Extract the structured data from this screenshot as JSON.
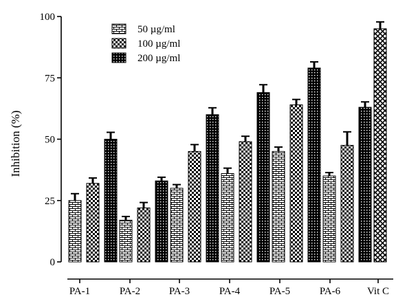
{
  "chart_data": {
    "type": "bar",
    "title": "",
    "xlabel": "",
    "ylabel": "Inhibition (%)",
    "ylim": [
      0,
      100
    ],
    "yticks": [
      0,
      25,
      50,
      75,
      100
    ],
    "grid": false,
    "legend_position": "top-left",
    "groups": [
      {
        "label": "PA-1",
        "bars": [
          {
            "series": "50 µg/ml",
            "value": 25,
            "error": 2.8
          },
          {
            "series": "100 µg/ml",
            "value": 32,
            "error": 2.2
          },
          {
            "series": "200 µg/ml",
            "value": 50,
            "error": 2.8
          }
        ]
      },
      {
        "label": "PA-2",
        "bars": [
          {
            "series": "50 µg/ml",
            "value": 17,
            "error": 1.5
          },
          {
            "series": "100 µg/ml",
            "value": 22,
            "error": 2.2
          },
          {
            "series": "200 µg/ml",
            "value": 33,
            "error": 1.5
          }
        ]
      },
      {
        "label": "PA-3",
        "bars": [
          {
            "series": "50 µg/ml",
            "value": 30,
            "error": 1.5
          },
          {
            "series": "100 µg/ml",
            "value": 45,
            "error": 2.8
          },
          {
            "series": "200 µg/ml",
            "value": 60,
            "error": 2.8
          }
        ]
      },
      {
        "label": "PA-4",
        "bars": [
          {
            "series": "50 µg/ml",
            "value": 36,
            "error": 2.2
          },
          {
            "series": "100 µg/ml",
            "value": 49,
            "error": 2.2
          },
          {
            "series": "200 µg/ml",
            "value": 69,
            "error": 3.2
          }
        ]
      },
      {
        "label": "PA-5",
        "bars": [
          {
            "series": "50 µg/ml",
            "value": 45,
            "error": 1.8
          },
          {
            "series": "100 µg/ml",
            "value": 64,
            "error": 2.2
          },
          {
            "series": "200 µg/ml",
            "value": 79,
            "error": 2.5
          }
        ]
      },
      {
        "label": "PA-6",
        "bars": [
          {
            "series": "50 µg/ml",
            "value": 35,
            "error": 1.4
          },
          {
            "series": "100 µg/ml",
            "value": 47.5,
            "error": 5.5
          },
          {
            "series": "200 µg/ml",
            "value": 63,
            "error": 2.2
          }
        ]
      },
      {
        "label": "Vit C",
        "bars": [
          {
            "series": "Vit C",
            "value": 95,
            "error": 2.8
          }
        ]
      }
    ],
    "series": [
      {
        "name": "50 µg/ml",
        "pattern": "brick"
      },
      {
        "name": "100 µg/ml",
        "pattern": "checker"
      },
      {
        "name": "200 µg/ml",
        "pattern": "dots"
      },
      {
        "name": "Vit C",
        "pattern": "crosshatch"
      }
    ],
    "legend": [
      "50 µg/ml",
      "100 µg/ml",
      "200 µg/ml"
    ]
  }
}
